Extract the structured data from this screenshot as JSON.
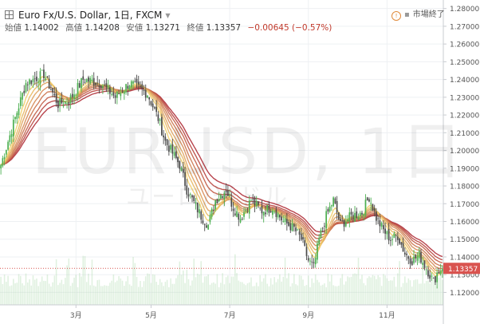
{
  "header": {
    "symbol": "Euro Fx/U.S. Dollar, 1日, FXCM",
    "ohlc": [
      {
        "label": "始値",
        "value": "1.14002"
      },
      {
        "label": "高値",
        "value": "1.14208"
      },
      {
        "label": "安値",
        "value": "1.13271"
      },
      {
        "label": "終値",
        "value": "1.13357"
      }
    ],
    "change": "−0.00645 (−0.57%)",
    "market_status": "市場終了"
  },
  "watermark": {
    "symbol": "EURUSD, 1日",
    "name": "ユーロ/米ドル"
  },
  "colors": {
    "up": "#4caf50",
    "down": "#4a4a4a",
    "ribbon_fast": "#f2d06b",
    "ribbon_slow": "#b0303a",
    "volume": "#a5d6a7",
    "last_price": "#d9534f",
    "grid": "#eef0f3"
  },
  "chart_data": {
    "type": "candlestick",
    "series_name": "Euro Fx/U.S. Dollar",
    "x_ticks": [
      "3月",
      "5月",
      "7月",
      "9月",
      "11月"
    ],
    "ylim": [
      1.113,
      1.283
    ],
    "y_ticks": [
      1.12,
      1.13,
      1.14,
      1.15,
      1.16,
      1.17,
      1.18,
      1.19,
      1.2,
      1.21,
      1.22,
      1.23,
      1.24,
      1.25,
      1.26,
      1.27,
      1.28
    ],
    "last_price": 1.13357,
    "last_price_label": "1.13357",
    "ribbon_count": 8,
    "price_path": [
      [
        0,
        1.192
      ],
      [
        10,
        1.225
      ],
      [
        14,
        1.238
      ],
      [
        24,
        1.243
      ],
      [
        32,
        1.226
      ],
      [
        38,
        1.228
      ],
      [
        46,
        1.24
      ],
      [
        56,
        1.238
      ],
      [
        64,
        1.23
      ],
      [
        72,
        1.238
      ],
      [
        82,
        1.232
      ],
      [
        88,
        1.218
      ],
      [
        92,
        1.205
      ],
      [
        100,
        1.192
      ],
      [
        104,
        1.178
      ],
      [
        112,
        1.163
      ],
      [
        116,
        1.158
      ],
      [
        120,
        1.172
      ],
      [
        126,
        1.178
      ],
      [
        130,
        1.168
      ],
      [
        134,
        1.162
      ],
      [
        140,
        1.172
      ],
      [
        146,
        1.166
      ],
      [
        152,
        1.168
      ],
      [
        158,
        1.16
      ],
      [
        164,
        1.156
      ],
      [
        168,
        1.15
      ],
      [
        172,
        1.138
      ],
      [
        175,
        1.134
      ],
      [
        178,
        1.15
      ],
      [
        182,
        1.163
      ],
      [
        186,
        1.172
      ],
      [
        190,
        1.158
      ],
      [
        196,
        1.163
      ],
      [
        202,
        1.165
      ],
      [
        206,
        1.174
      ],
      [
        210,
        1.162
      ],
      [
        214,
        1.155
      ],
      [
        218,
        1.15
      ],
      [
        222,
        1.152
      ],
      [
        226,
        1.142
      ],
      [
        230,
        1.138
      ],
      [
        234,
        1.141
      ],
      [
        240,
        1.13
      ],
      [
        242,
        1.126
      ],
      [
        244,
        1.131
      ],
      [
        247,
        1.134
      ]
    ]
  }
}
